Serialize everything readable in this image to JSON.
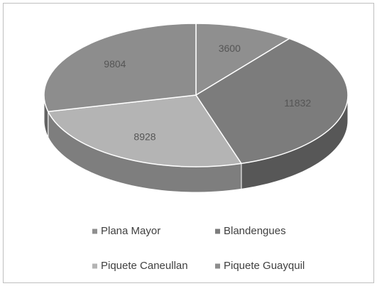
{
  "chart_data": {
    "type": "pie",
    "categories": [
      "Plana Mayor",
      "Blandengues",
      "Piquete Caneullan",
      "Piquete Guayquil"
    ],
    "values": [
      3600,
      11832,
      8928,
      9804
    ],
    "colors": [
      "#8f8f8f",
      "#7c7c7c",
      "#b4b4b4",
      "#8d8d8d"
    ],
    "legend": "bottom"
  }
}
